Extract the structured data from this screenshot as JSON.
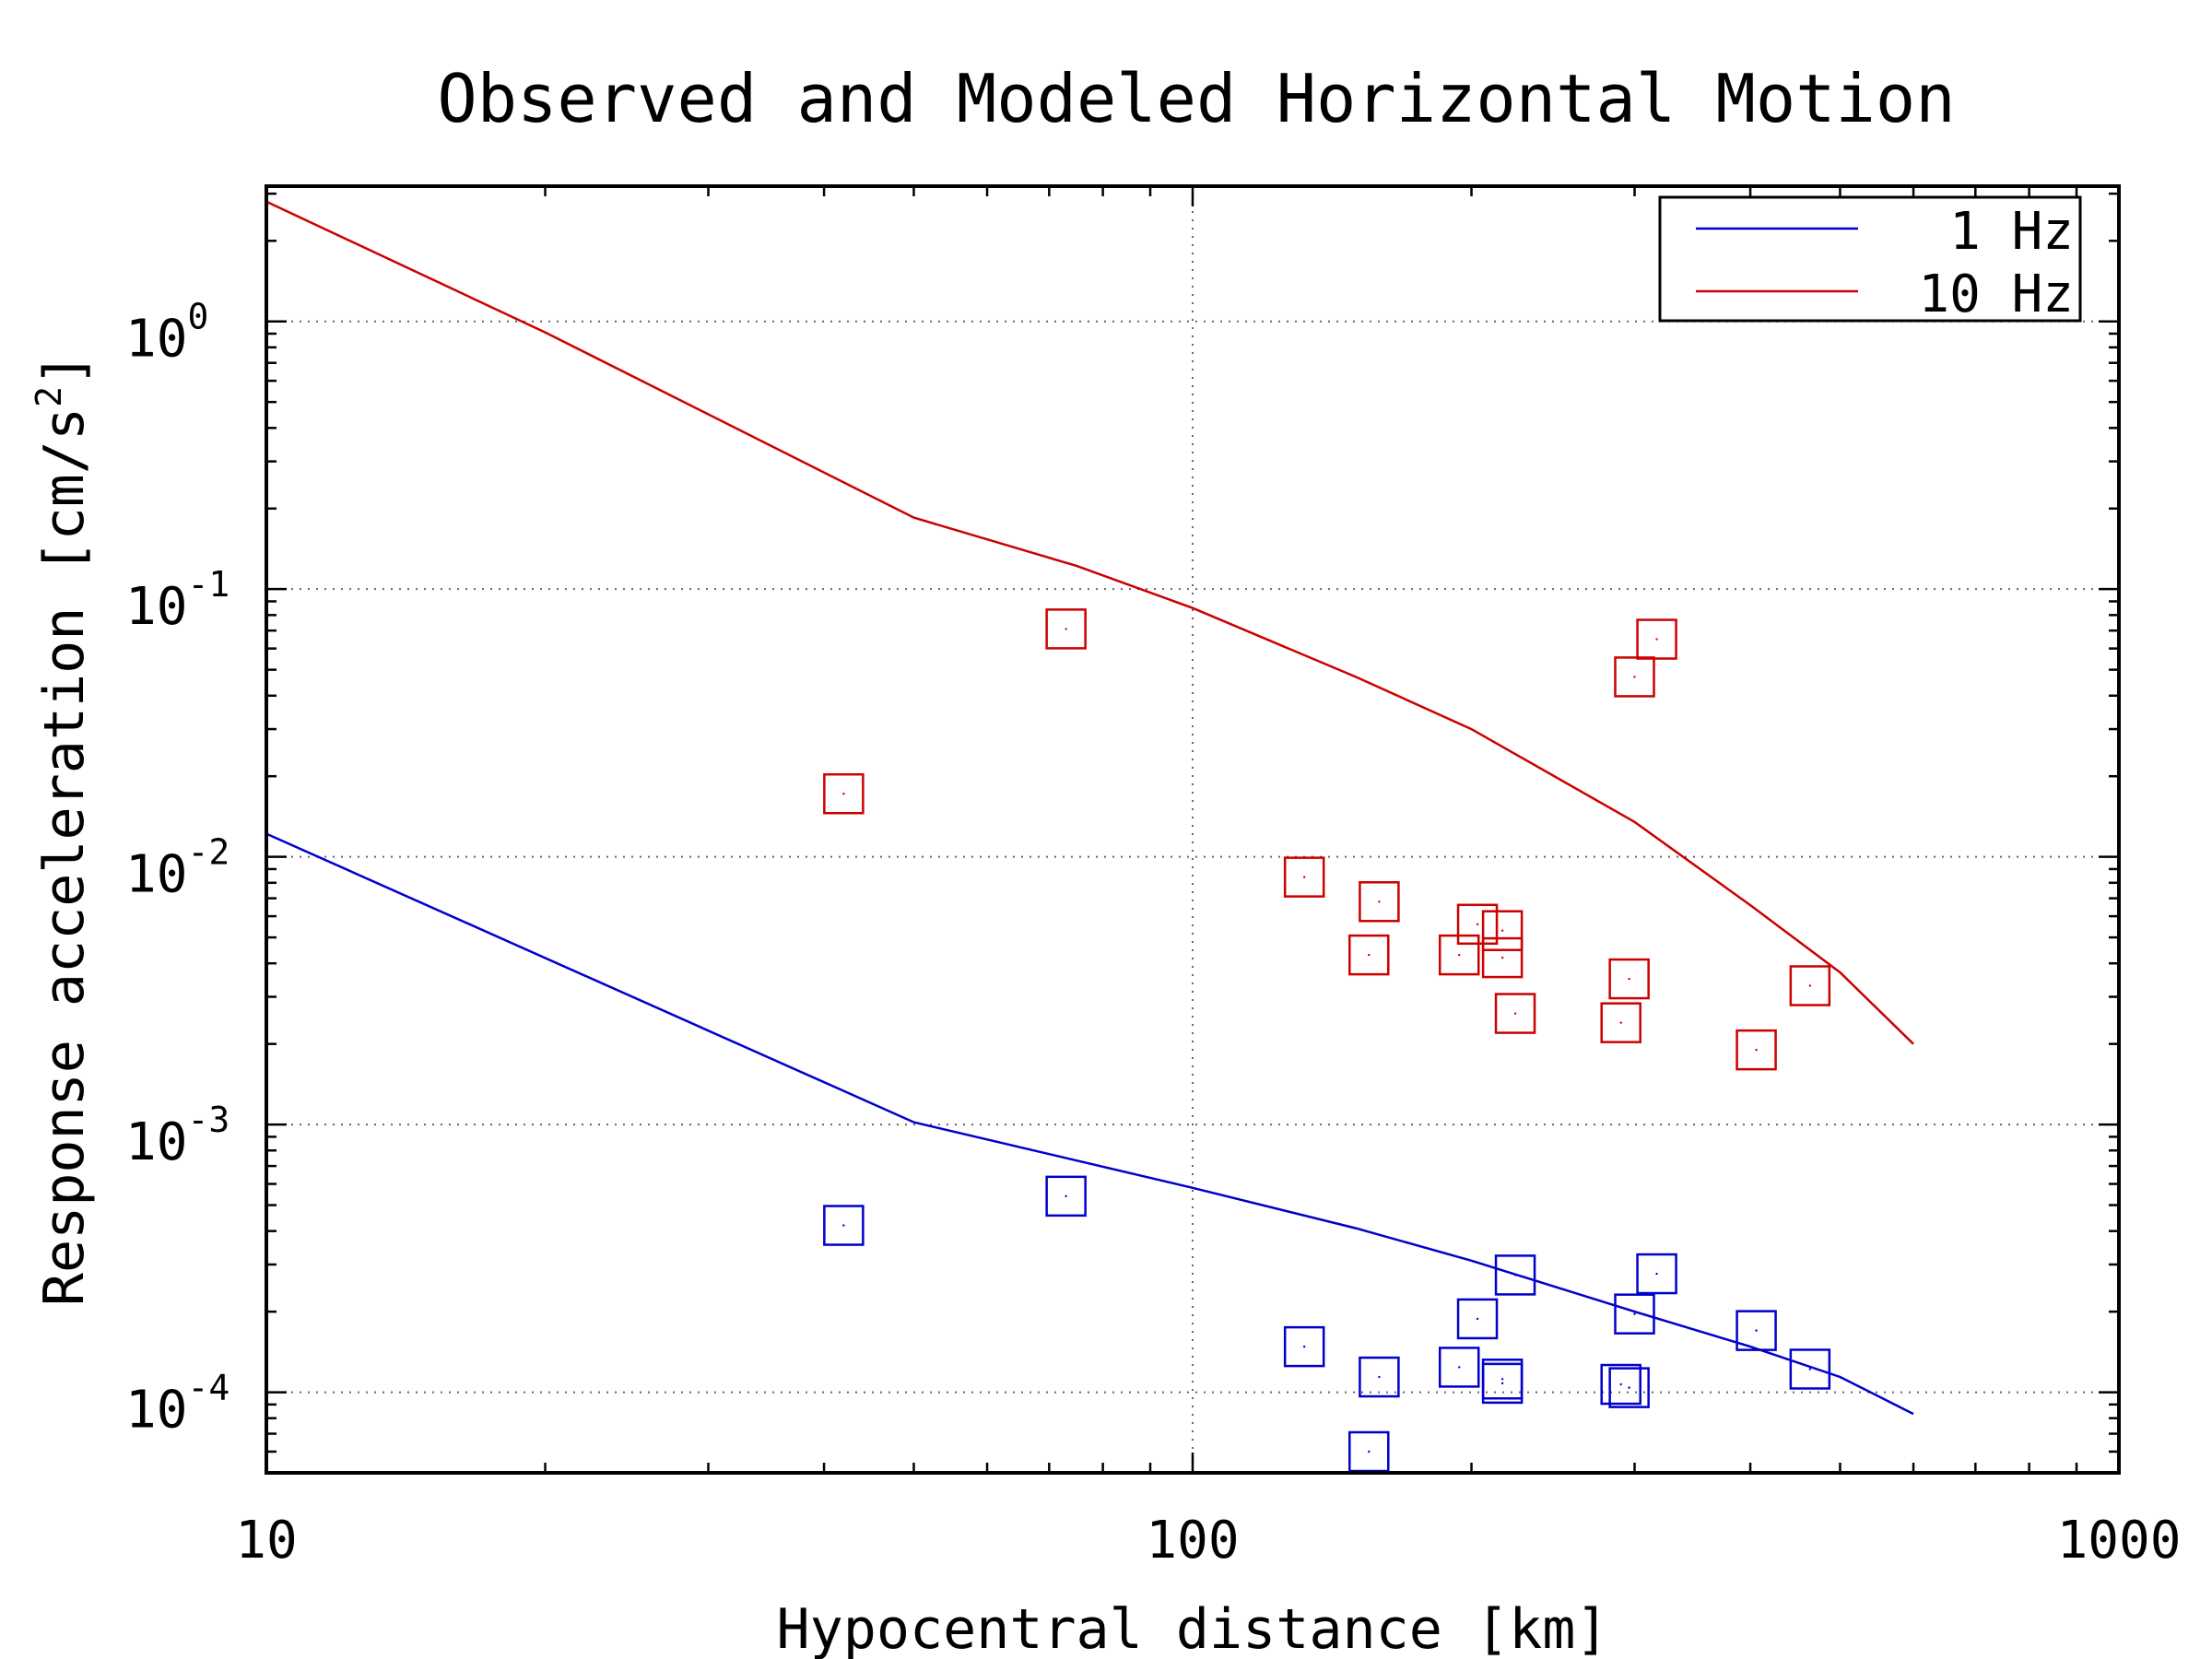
{
  "chart_data": {
    "type": "scatter",
    "title": "Observed and Modeled Horizontal Motion",
    "xlabel": "Hypocentral distance [km]",
    "ylabel": "Response acceleration [cm/s",
    "ylabel_sup": "2",
    "ylabel_end": "]",
    "xscale": "log",
    "yscale": "log",
    "xlim": [
      10,
      1000
    ],
    "ylim": [
      5e-05,
      3.2
    ],
    "grid": true,
    "legend_position": "top-right",
    "x_ticks": [
      {
        "value": 10,
        "label": "10"
      },
      {
        "value": 100,
        "label": "100"
      },
      {
        "value": 1000,
        "label": "1000"
      }
    ],
    "y_ticks": [
      {
        "value": 1,
        "base": "10",
        "exp": "0"
      },
      {
        "value": 0.1,
        "base": "10",
        "exp": "-1"
      },
      {
        "value": 0.01,
        "base": "10",
        "exp": "-2"
      },
      {
        "value": 0.001,
        "base": "10",
        "exp": "-3"
      },
      {
        "value": 0.0001,
        "base": "10",
        "exp": "-4"
      }
    ],
    "series": [
      {
        "name": "1 Hz",
        "color": "#0000cc",
        "model_line": [
          [
            10,
            0.0122
          ],
          [
            50,
            0.00102
          ],
          [
            100,
            0.00058
          ],
          [
            150,
            0.00041
          ],
          [
            200,
            0.00031
          ],
          [
            300,
            0.0002
          ],
          [
            400,
            0.000148
          ],
          [
            500,
            0.000114
          ],
          [
            600,
            8.3e-05
          ]
        ],
        "observed": [
          [
            42,
            0.00042
          ],
          [
            73,
            0.00054
          ],
          [
            132,
            0.000148
          ],
          [
            155,
            6e-05
          ],
          [
            159,
            0.000114
          ],
          [
            194,
            0.000124
          ],
          [
            203,
            0.000188
          ],
          [
            216,
            0.000112
          ],
          [
            216,
            0.000108
          ],
          [
            223,
            0.000274
          ],
          [
            290,
            0.000107
          ],
          [
            296,
            0.000104
          ],
          [
            300,
            0.000196
          ],
          [
            317,
            0.000277
          ],
          [
            406,
            0.00017
          ],
          [
            464,
            0.000122
          ]
        ]
      },
      {
        "name": "10 Hz",
        "color": "#cc0000",
        "model_line": [
          [
            10,
            2.8
          ],
          [
            20,
            0.91
          ],
          [
            50,
            0.185
          ],
          [
            75,
            0.122
          ],
          [
            100,
            0.085
          ],
          [
            150,
            0.047
          ],
          [
            200,
            0.03
          ],
          [
            300,
            0.0135
          ],
          [
            400,
            0.0066
          ],
          [
            500,
            0.0037
          ],
          [
            600,
            0.002
          ]
        ],
        "observed": [
          [
            42,
            0.0172
          ],
          [
            73,
            0.071
          ],
          [
            132,
            0.0084
          ],
          [
            155,
            0.0043
          ],
          [
            159,
            0.0068
          ],
          [
            194,
            0.0043
          ],
          [
            203,
            0.0056
          ],
          [
            216,
            0.0053
          ],
          [
            216,
            0.0042
          ],
          [
            223,
            0.0026
          ],
          [
            290,
            0.0024
          ],
          [
            296,
            0.0035
          ],
          [
            300,
            0.047
          ],
          [
            317,
            0.065
          ],
          [
            406,
            0.0019
          ],
          [
            464,
            0.0033
          ]
        ]
      }
    ]
  }
}
